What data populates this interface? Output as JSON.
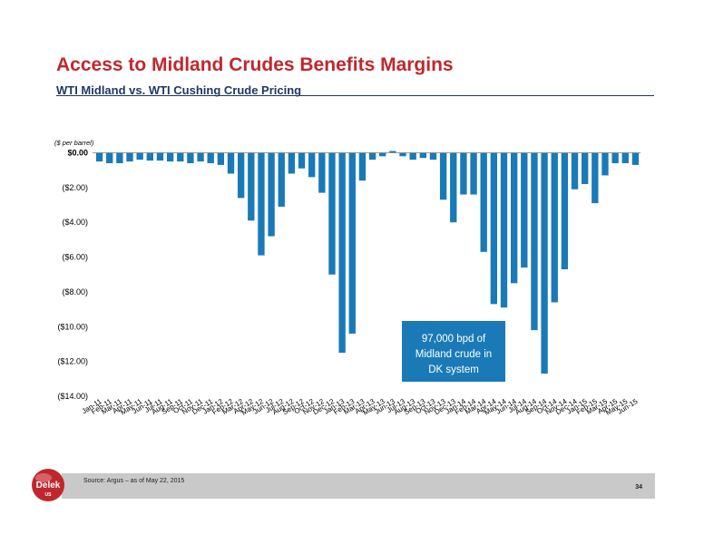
{
  "header": {
    "title": "Access to Midland Crudes Benefits Margins",
    "subtitle": "WTI Midland vs. WTI Cushing Crude Pricing"
  },
  "annotation": {
    "lines": [
      "97,000 bpd of",
      "Midland crude in",
      "DK system"
    ]
  },
  "footer": {
    "source": "Source:  Argus – as of May 22, 2015",
    "page_number": "34"
  },
  "logo": {
    "text": "Delek",
    "sub_text": "US"
  },
  "colors": {
    "bar": "#1a7ab8",
    "title": "#c0272d",
    "subtitle": "#1f3864",
    "annotation_box": "#1a7ab8",
    "footer_bar": "#c9c9c9",
    "logo": "#c0272d"
  },
  "chart_data": {
    "type": "bar",
    "title": "",
    "ylabel": "($ per barrel)",
    "xlabel": "",
    "ylim": [
      -14,
      0
    ],
    "yticks": [
      0,
      -2,
      -4,
      -6,
      -8,
      -10,
      -12,
      -14
    ],
    "ytick_labels": [
      "$0.00",
      "($2.00)",
      "($4.00)",
      "($6.00)",
      "($8.00)",
      "($10.00)",
      "($12.00)",
      "($14.00)"
    ],
    "grid": false,
    "legend": "none",
    "categories": [
      "Jan-11",
      "Feb-11",
      "Mar-11",
      "Apr-11",
      "May-11",
      "Jun-11",
      "Jul-11",
      "Aug-11",
      "Sep-11",
      "Oct-11",
      "Nov-11",
      "Dec-11",
      "Jan-12",
      "Feb-12",
      "Mar-12",
      "Apr-12",
      "May-12",
      "Jun-12",
      "Jul-12",
      "Aug-12",
      "Sep-12",
      "Oct-12",
      "Nov-12",
      "Dec-12",
      "Jan-13",
      "Feb-13",
      "Mar-13",
      "Apr-13",
      "May-13",
      "Jun-13",
      "Jul-13",
      "Aug-13",
      "Sep-13",
      "Oct-13",
      "Nov-13",
      "Dec-13",
      "Jan-14",
      "Feb-14",
      "Mar-14",
      "Apr-14",
      "May-14",
      "Jun-14",
      "Jul-14",
      "Aug-14",
      "Sep-14",
      "Oct-14",
      "Nov-14",
      "Dec-14",
      "Jan-15",
      "Feb-15",
      "Mar-15",
      "Apr-15",
      "May-15",
      "Jun-15"
    ],
    "values": [
      -0.5,
      -0.6,
      -0.6,
      -0.5,
      -0.4,
      -0.45,
      -0.45,
      -0.5,
      -0.5,
      -0.6,
      -0.5,
      -0.6,
      -0.7,
      -1.2,
      -2.6,
      -3.9,
      -5.9,
      -4.8,
      -3.1,
      -1.2,
      -0.9,
      -1.4,
      -2.3,
      -7.0,
      -11.5,
      -10.4,
      -1.6,
      -0.4,
      -0.2,
      0.1,
      -0.2,
      -0.4,
      -0.3,
      -0.4,
      -2.7,
      -4.0,
      -2.4,
      -2.4,
      -5.7,
      -8.7,
      -8.9,
      -7.5,
      -6.6,
      -10.2,
      -12.7,
      -8.6,
      -6.7,
      -2.1,
      -1.8,
      -2.9,
      -1.3,
      -0.6,
      -0.6,
      -0.7
    ]
  }
}
